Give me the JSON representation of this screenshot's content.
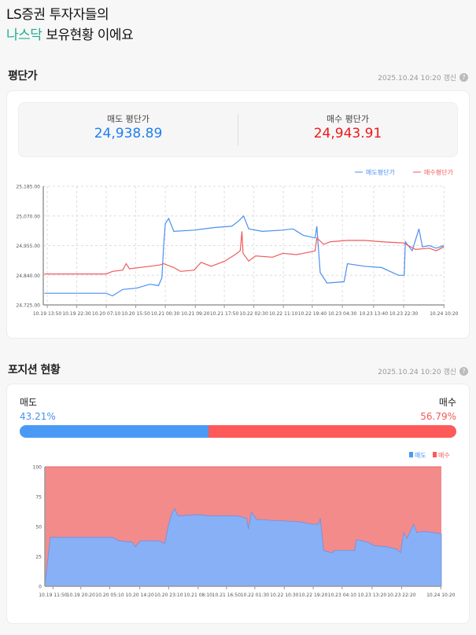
{
  "hero": {
    "line1": "LS증권 투자자들의",
    "accent": "나스닥",
    "line2_rest": " 보유현황 이에요"
  },
  "avg_section": {
    "title": "평단가",
    "updated": "2025.10.24 10:20 갱신",
    "help_icon": "question-circle-icon",
    "sell_label": "매도 평단가",
    "sell_value": "24,938.89",
    "buy_label": "매수 평단가",
    "buy_value": "24,943.91"
  },
  "position_section": {
    "title": "포지션 현황",
    "updated": "2025.10.24 10:20 갱신",
    "help_icon": "question-circle-icon",
    "sell_label": "매도",
    "sell_pct": "43.21%",
    "buy_label": "매수",
    "buy_pct": "56.79%",
    "sell_ratio": 43.21,
    "buy_ratio": 56.79
  },
  "colors": {
    "sell": "#4a8ff0",
    "buy": "#f05a5a",
    "accent": "#1fae8f",
    "sell_area": "#87b0f7",
    "buy_area": "#f38b8b"
  },
  "chart_data": [
    {
      "type": "line",
      "grid": true,
      "legend": "top-right",
      "ylim": [
        24725,
        25185
      ],
      "yticks": [
        "24,725.00",
        "24,840.00",
        "24,955.00",
        "25,070.00",
        "25,185.00"
      ],
      "xticks": [
        "10.19 13:50",
        "10.19 22:30",
        "10.20 07:10",
        "10.20 15:50",
        "10.21 00:30",
        "10.21 09:20",
        "10.21 17:50",
        "10.22 02:30",
        "10.22 11:10",
        "10.22 19:40",
        "10.23 04:30",
        "10.23 13:40",
        "10.23 22:30",
        "10.24 10:20"
      ],
      "series": [
        {
          "name": "매도평단가",
          "color": "#4a8ff0",
          "points": [
            [
              "10.19 13:00",
              24770
            ],
            [
              "10.20 07:10",
              24770
            ],
            [
              "10.20 09:00",
              24760
            ],
            [
              "10.20 12:00",
              24785
            ],
            [
              "10.20 16:00",
              24790
            ],
            [
              "10.20 20:00",
              24805
            ],
            [
              "10.20 22:30",
              24800
            ],
            [
              "10.20 23:30",
              24830
            ],
            [
              "10.21 00:00",
              24950
            ],
            [
              "10.21 00:30",
              25040
            ],
            [
              "10.21 01:30",
              25060
            ],
            [
              "10.21 03:00",
              25010
            ],
            [
              "10.21 09:00",
              25015
            ],
            [
              "10.21 15:00",
              25025
            ],
            [
              "10.21 20:00",
              25030
            ],
            [
              "10.21 22:00",
              25050
            ],
            [
              "10.21 23:30",
              25070
            ],
            [
              "10.22 01:00",
              25020
            ],
            [
              "10.22 05:00",
              25010
            ],
            [
              "10.22 11:00",
              25015
            ],
            [
              "10.22 14:00",
              25020
            ],
            [
              "10.22 17:00",
              24995
            ],
            [
              "10.22 20:30",
              24985
            ],
            [
              "10.22 21:00",
              25030
            ],
            [
              "10.22 22:00",
              24850
            ],
            [
              "10.23 00:00",
              24810
            ],
            [
              "10.23 05:00",
              24815
            ],
            [
              "10.23 06:00",
              24885
            ],
            [
              "10.23 11:00",
              24875
            ],
            [
              "10.23 16:00",
              24870
            ],
            [
              "10.23 21:00",
              24840
            ],
            [
              "10.23 22:40",
              24840
            ],
            [
              "10.23 23:00",
              24970
            ],
            [
              "10.24 01:00",
              24935
            ],
            [
              "10.24 03:00",
              25020
            ],
            [
              "10.24 04:00",
              24950
            ],
            [
              "10.24 06:00",
              24955
            ],
            [
              "10.24 08:00",
              24945
            ],
            [
              "10.24 10:20",
              24955
            ]
          ]
        },
        {
          "name": "매수평단가",
          "color": "#f05a5a",
          "points": [
            [
              "10.19 13:00",
              24845
            ],
            [
              "10.20 07:10",
              24845
            ],
            [
              "10.20 09:00",
              24855
            ],
            [
              "10.20 12:00",
              24860
            ],
            [
              "10.20 13:00",
              24885
            ],
            [
              "10.20 14:00",
              24865
            ],
            [
              "10.20 20:00",
              24875
            ],
            [
              "10.20 23:00",
              24880
            ],
            [
              "10.21 00:00",
              24885
            ],
            [
              "10.21 03:00",
              24870
            ],
            [
              "10.21 05:00",
              24855
            ],
            [
              "10.21 09:00",
              24860
            ],
            [
              "10.21 11:00",
              24890
            ],
            [
              "10.21 14:00",
              24875
            ],
            [
              "10.21 18:00",
              24895
            ],
            [
              "10.21 21:00",
              24920
            ],
            [
              "10.21 22:30",
              24935
            ],
            [
              "10.21 23:00",
              25010
            ],
            [
              "10.21 23:20",
              24925
            ],
            [
              "10.22 01:00",
              24895
            ],
            [
              "10.22 03:00",
              24915
            ],
            [
              "10.22 08:00",
              24910
            ],
            [
              "10.22 11:00",
              24925
            ],
            [
              "10.22 15:00",
              24920
            ],
            [
              "10.22 19:00",
              24930
            ],
            [
              "10.22 20:30",
              24935
            ],
            [
              "10.22 21:00",
              24985
            ],
            [
              "10.22 23:00",
              24960
            ],
            [
              "10.23 01:00",
              24970
            ],
            [
              "10.23 06:00",
              24975
            ],
            [
              "10.23 11:00",
              24975
            ],
            [
              "10.23 16:00",
              24970
            ],
            [
              "10.23 22:30",
              24965
            ],
            [
              "10.24 02:00",
              24940
            ],
            [
              "10.24 06:00",
              24945
            ],
            [
              "10.24 08:00",
              24935
            ],
            [
              "10.24 10:20",
              24950
            ]
          ]
        }
      ]
    },
    {
      "type": "area",
      "stacked": true,
      "legend": "top-right",
      "ylim": [
        0,
        100
      ],
      "yticks": [
        "0",
        "25",
        "50",
        "75",
        "100"
      ],
      "xticks": [
        "10.19 11:50",
        "10.19 20:20",
        "10.20 05:10",
        "10.20 14:20",
        "10.20 23:10",
        "10.21 08:10",
        "10.21 16:50",
        "10.22 01:30",
        "10.22 10:30",
        "10.22 19:20",
        "10.23 04:10",
        "10.23 13:20",
        "10.23 22:20",
        "10.24 10:20"
      ],
      "series": [
        {
          "name": "매도",
          "color": "#87b0f7",
          "points": [
            [
              "10.19 11:00",
              41
            ],
            [
              "10.20 06:00",
              41
            ],
            [
              "10.20 08:00",
              38
            ],
            [
              "10.20 12:00",
              37
            ],
            [
              "10.20 13:00",
              33
            ],
            [
              "10.20 14:30",
              38
            ],
            [
              "10.20 20:00",
              38
            ],
            [
              "10.20 22:00",
              36
            ],
            [
              "10.20 23:00",
              50
            ],
            [
              "10.21 00:00",
              60
            ],
            [
              "10.21 01:00",
              65
            ],
            [
              "10.21 02:00",
              59
            ],
            [
              "10.21 08:00",
              60
            ],
            [
              "10.21 12:00",
              59
            ],
            [
              "10.21 20:00",
              59
            ],
            [
              "10.21 23:00",
              57
            ],
            [
              "10.21 23:30",
              48
            ],
            [
              "10.22 00:30",
              62
            ],
            [
              "10.22 02:00",
              56
            ],
            [
              "10.22 08:00",
              55
            ],
            [
              "10.22 15:00",
              54
            ],
            [
              "10.22 19:00",
              52
            ],
            [
              "10.22 21:00",
              52
            ],
            [
              "10.22 21:30",
              57
            ],
            [
              "10.22 22:30",
              30
            ],
            [
              "10.23 01:00",
              28
            ],
            [
              "10.23 02:00",
              30
            ],
            [
              "10.23 08:00",
              30
            ],
            [
              "10.23 08:30",
              39
            ],
            [
              "10.23 12:00",
              37
            ],
            [
              "10.23 14:00",
              34
            ],
            [
              "10.23 18:00",
              33
            ],
            [
              "10.23 21:00",
              31
            ],
            [
              "10.23 22:00",
              28
            ],
            [
              "10.23 23:00",
              45
            ],
            [
              "10.24 00:00",
              40
            ],
            [
              "10.24 02:00",
              52
            ],
            [
              "10.24 03:00",
              45
            ],
            [
              "10.24 05:00",
              46
            ],
            [
              "10.24 08:00",
              45
            ],
            [
              "10.24 10:20",
              44
            ]
          ]
        },
        {
          "name": "매수",
          "color": "#f38b8b"
        }
      ]
    }
  ]
}
